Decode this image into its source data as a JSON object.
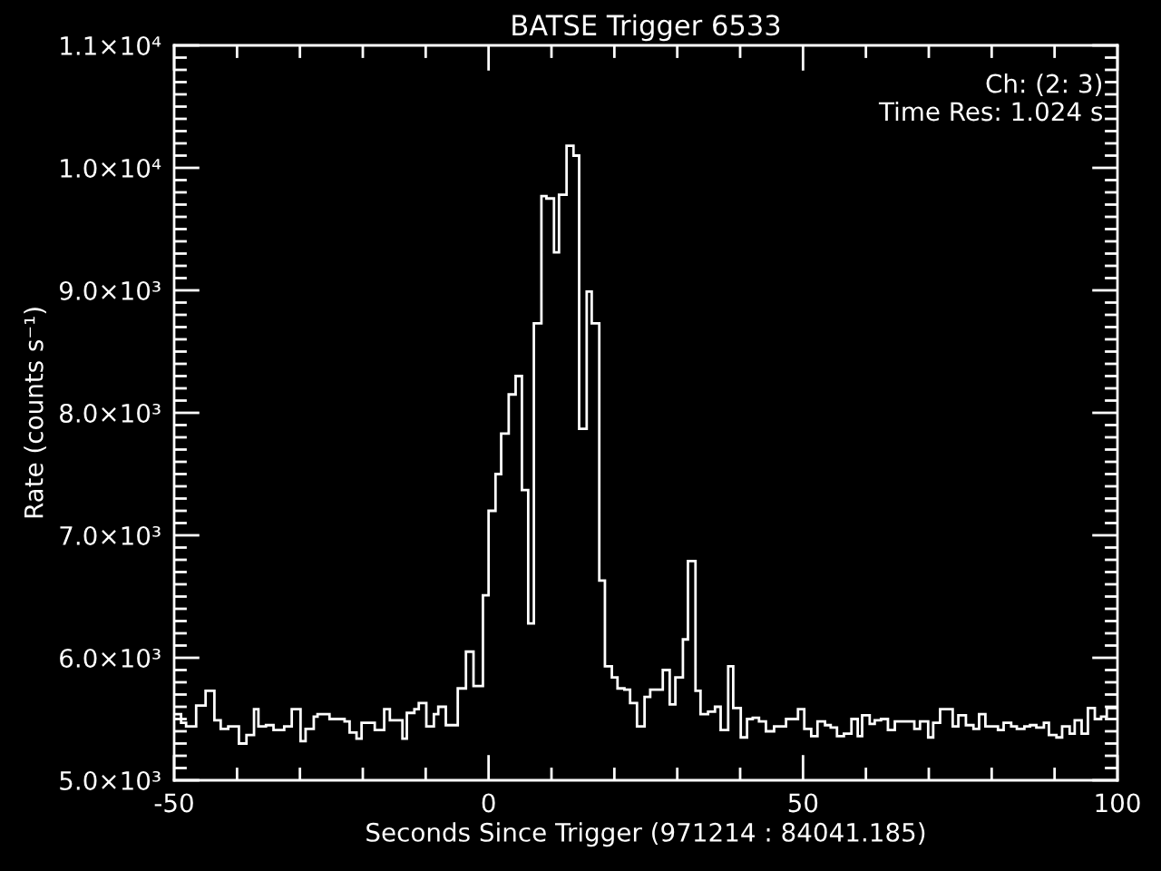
{
  "chart_data": {
    "type": "histogram",
    "title": "BATSE Trigger 6533",
    "xlabel": "Seconds Since Trigger (971214 : 84041.185)",
    "ylabel": "Rate (counts s⁻¹)",
    "annotations": [
      "Ch: (2: 3)",
      "Time Res: 1.024 s"
    ],
    "xlim": [
      -50,
      100
    ],
    "xticks": [
      -50,
      {
        "value": -40,
        "label": null
      },
      {
        "value": -30,
        "label": null
      },
      {
        "value": -20,
        "label": null
      },
      {
        "value": -10,
        "label": null
      },
      0,
      {
        "value": 10,
        "label": null
      },
      {
        "value": 20,
        "label": null
      },
      {
        "value": 30,
        "label": null
      },
      {
        "value": 40,
        "label": null
      },
      50,
      {
        "value": 60,
        "label": null
      },
      {
        "value": 70,
        "label": null
      },
      {
        "value": 80,
        "label": null
      },
      {
        "value": 90,
        "label": null
      },
      100
    ],
    "ylim": [
      5000,
      11000
    ],
    "yticks": [
      {
        "value": 5000,
        "label": "5.0×10³"
      },
      {
        "value": 5100,
        "label": null
      },
      {
        "value": 5200,
        "label": null
      },
      {
        "value": 5300,
        "label": null
      },
      {
        "value": 5400,
        "label": null
      },
      {
        "value": 5500,
        "label": null
      },
      {
        "value": 5600,
        "label": null
      },
      {
        "value": 5700,
        "label": null
      },
      {
        "value": 5800,
        "label": null
      },
      {
        "value": 5900,
        "label": null
      },
      {
        "value": 6000,
        "label": "6.0×10³"
      },
      {
        "value": 6100,
        "label": null
      },
      {
        "value": 6200,
        "label": null
      },
      {
        "value": 6300,
        "label": null
      },
      {
        "value": 6400,
        "label": null
      },
      {
        "value": 6500,
        "label": null
      },
      {
        "value": 6600,
        "label": null
      },
      {
        "value": 6700,
        "label": null
      },
      {
        "value": 6800,
        "label": null
      },
      {
        "value": 6900,
        "label": null
      },
      {
        "value": 7000,
        "label": "7.0×10³"
      },
      {
        "value": 7100,
        "label": null
      },
      {
        "value": 7200,
        "label": null
      },
      {
        "value": 7300,
        "label": null
      },
      {
        "value": 7400,
        "label": null
      },
      {
        "value": 7500,
        "label": null
      },
      {
        "value": 7600,
        "label": null
      },
      {
        "value": 7700,
        "label": null
      },
      {
        "value": 7800,
        "label": null
      },
      {
        "value": 7900,
        "label": null
      },
      {
        "value": 8000,
        "label": "8.0×10³"
      },
      {
        "value": 8100,
        "label": null
      },
      {
        "value": 8200,
        "label": null
      },
      {
        "value": 8300,
        "label": null
      },
      {
        "value": 8400,
        "label": null
      },
      {
        "value": 8500,
        "label": null
      },
      {
        "value": 8600,
        "label": null
      },
      {
        "value": 8700,
        "label": null
      },
      {
        "value": 8800,
        "label": null
      },
      {
        "value": 8900,
        "label": null
      },
      {
        "value": 9000,
        "label": "9.0×10³"
      },
      {
        "value": 9100,
        "label": null
      },
      {
        "value": 9200,
        "label": null
      },
      {
        "value": 9300,
        "label": null
      },
      {
        "value": 9400,
        "label": null
      },
      {
        "value": 9500,
        "label": null
      },
      {
        "value": 9600,
        "label": null
      },
      {
        "value": 9700,
        "label": null
      },
      {
        "value": 9800,
        "label": null
      },
      {
        "value": 9900,
        "label": null
      },
      {
        "value": 10000,
        "label": "1.0×10⁴"
      },
      {
        "value": 10100,
        "label": null
      },
      {
        "value": 10200,
        "label": null
      },
      {
        "value": 10300,
        "label": null
      },
      {
        "value": 10400,
        "label": null
      },
      {
        "value": 10500,
        "label": null
      },
      {
        "value": 10600,
        "label": null
      },
      {
        "value": 10700,
        "label": null
      },
      {
        "value": 10800,
        "label": null
      },
      {
        "value": 10900,
        "label": null
      },
      {
        "value": 11000,
        "label": "1.1×10⁴"
      }
    ],
    "line_style": "solid",
    "bins": [
      -50.0,
      -48.9,
      -48.1,
      -46.5,
      -45.0,
      -43.6,
      -42.6,
      -41.4,
      -39.7,
      -38.5,
      -37.3,
      -36.6,
      -35.4,
      -34.2,
      -32.5,
      -31.3,
      -29.9,
      -29.1,
      -27.8,
      -27.2,
      -25.3,
      -22.9,
      -22.1,
      -21.0,
      -20.2,
      -18.1,
      -16.6,
      -15.7,
      -13.7,
      -13.0,
      -11.8,
      -11.1,
      -9.9,
      -8.7,
      -8.0,
      -6.8,
      -4.9,
      -3.6,
      -2.4,
      -0.9,
      0.0,
      1.1,
      2.0,
      3.2,
      4.3,
      5.3,
      6.3,
      7.2,
      8.4,
      9.2,
      10.4,
      11.2,
      12.4,
      13.5,
      14.4,
      15.6,
      16.4,
      17.6,
      18.5,
      19.6,
      20.5,
      21.6,
      22.5,
      23.6,
      24.8,
      25.7,
      27.7,
      28.8,
      29.7,
      30.9,
      31.7,
      32.9,
      33.7,
      34.9,
      36.0,
      36.9,
      38.1,
      38.9,
      40.1,
      41.1,
      42.0,
      43.0,
      44.1,
      45.4,
      47.3,
      49.2,
      50.2,
      51.3,
      52.3,
      53.5,
      54.4,
      55.4,
      56.5,
      57.7,
      58.7,
      59.4,
      60.6,
      61.4,
      62.4,
      63.5,
      64.6,
      67.7,
      68.6,
      69.9,
      70.7,
      71.8,
      73.8,
      74.7,
      75.9,
      77.1,
      78.0,
      79.0,
      81.0,
      81.9,
      83.1,
      84.0,
      85.2,
      86.1,
      87.1,
      88.3,
      89.1,
      90.3,
      91.2,
      92.4,
      93.2,
      94.3,
      95.3,
      96.4,
      97.4,
      98.3,
      100.0
    ],
    "series": [
      {
        "color": "#ffffff",
        "values": [
          5540,
          5470,
          5440,
          5610,
          5730,
          5490,
          5420,
          5440,
          5300,
          5370,
          5580,
          5440,
          5450,
          5410,
          5440,
          5580,
          5320,
          5420,
          5520,
          5540,
          5500,
          5480,
          5390,
          5340,
          5470,
          5410,
          5580,
          5490,
          5340,
          5550,
          5580,
          5630,
          5440,
          5540,
          5600,
          5450,
          5750,
          6050,
          5770,
          6510,
          7200,
          7500,
          7830,
          8150,
          8300,
          7370,
          6280,
          8730,
          9770,
          9750,
          9310,
          9780,
          10180,
          10100,
          7870,
          8990,
          8730,
          6630,
          5930,
          5840,
          5750,
          5740,
          5630,
          5440,
          5680,
          5740,
          5900,
          5620,
          5840,
          6150,
          6790,
          5730,
          5540,
          5560,
          5600,
          5410,
          5930,
          5590,
          5350,
          5500,
          5510,
          5480,
          5400,
          5440,
          5500,
          5580,
          5420,
          5360,
          5480,
          5450,
          5430,
          5360,
          5380,
          5500,
          5360,
          5530,
          5460,
          5490,
          5500,
          5410,
          5480,
          5420,
          5480,
          5350,
          5470,
          5580,
          5440,
          5530,
          5450,
          5420,
          5540,
          5440,
          5410,
          5470,
          5440,
          5420,
          5440,
          5450,
          5430,
          5470,
          5370,
          5350,
          5440,
          5380,
          5490,
          5380,
          5590,
          5500,
          5520,
          5590
        ]
      }
    ]
  }
}
